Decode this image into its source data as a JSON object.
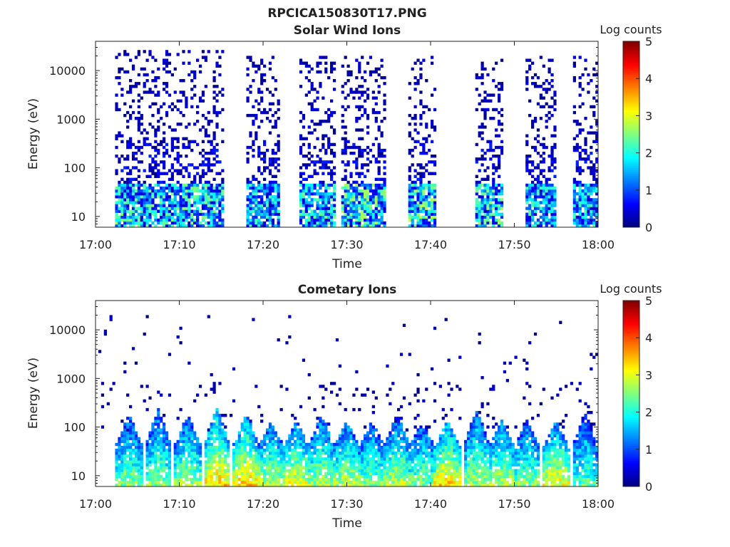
{
  "figure_title": "RPCICA150830T17.PNG",
  "chart_data": [
    {
      "type": "heatmap",
      "title": "Solar Wind Ions",
      "xlabel": "Time",
      "ylabel": "Energy (eV)",
      "xlim": [
        "17:00",
        "18:00"
      ],
      "ylim": [
        6,
        40000
      ],
      "y_scale": "log",
      "x_ticks": [
        "17:00",
        "17:10",
        "17:20",
        "17:30",
        "17:40",
        "17:50",
        "18:00"
      ],
      "y_ticks": [
        "10",
        "100",
        "1000",
        "10000"
      ],
      "colorbar": {
        "label": "Log counts",
        "min": 0,
        "max": 5,
        "ticks": [
          "0",
          "1",
          "2",
          "3",
          "4",
          "5"
        ],
        "colormap": "jet"
      },
      "bursts": [
        {
          "start_min": 2.5,
          "end_min": 15.5,
          "peak_log_counts": 2.3,
          "low_energy_ev": 45,
          "sparse_max_ev": 25000
        },
        {
          "start_min": 18.0,
          "end_min": 22.0,
          "peak_log_counts": 2.0,
          "low_energy_ev": 45,
          "sparse_max_ev": 20000
        },
        {
          "start_min": 24.5,
          "end_min": 28.5,
          "peak_log_counts": 2.2,
          "low_energy_ev": 45,
          "sparse_max_ev": 20000
        },
        {
          "start_min": 29.5,
          "end_min": 34.5,
          "peak_log_counts": 2.5,
          "low_energy_ev": 45,
          "sparse_max_ev": 20000
        },
        {
          "start_min": 37.5,
          "end_min": 40.5,
          "peak_log_counts": 2.6,
          "low_energy_ev": 45,
          "sparse_max_ev": 20000
        },
        {
          "start_min": 45.5,
          "end_min": 48.5,
          "peak_log_counts": 2.4,
          "low_energy_ev": 45,
          "sparse_max_ev": 18000
        },
        {
          "start_min": 51.5,
          "end_min": 55.0,
          "peak_log_counts": 2.0,
          "low_energy_ev": 45,
          "sparse_max_ev": 20000
        },
        {
          "start_min": 57.0,
          "end_min": 60.0,
          "peak_log_counts": 2.0,
          "low_energy_ev": 45,
          "sparse_max_ev": 20000
        }
      ]
    },
    {
      "type": "heatmap",
      "title": "Cometary Ions",
      "xlabel": "Time",
      "ylabel": "Energy (eV)",
      "xlim": [
        "17:00",
        "18:00"
      ],
      "ylim": [
        6,
        40000
      ],
      "y_scale": "log",
      "x_ticks": [
        "17:00",
        "17:10",
        "17:20",
        "17:30",
        "17:40",
        "17:50",
        "18:00"
      ],
      "y_ticks": [
        "10",
        "100",
        "1000",
        "10000"
      ],
      "colorbar": {
        "label": "Log counts",
        "min": 0,
        "max": 5,
        "ticks": [
          "0",
          "1",
          "2",
          "3",
          "4",
          "5"
        ],
        "colormap": "jet"
      },
      "pulses": [
        {
          "center_min": 4.0,
          "peak_log_counts": 3.0,
          "top_energy_ev": 200
        },
        {
          "center_min": 7.5,
          "peak_log_counts": 3.0,
          "top_energy_ev": 250
        },
        {
          "center_min": 11.0,
          "peak_log_counts": 3.2,
          "top_energy_ev": 200
        },
        {
          "center_min": 14.5,
          "peak_log_counts": 3.8,
          "top_energy_ev": 300
        },
        {
          "center_min": 18.0,
          "peak_log_counts": 3.8,
          "top_energy_ev": 200
        },
        {
          "center_min": 21.0,
          "peak_log_counts": 3.3,
          "top_energy_ev": 150
        },
        {
          "center_min": 24.0,
          "peak_log_counts": 3.5,
          "top_energy_ev": 150
        },
        {
          "center_min": 27.0,
          "peak_log_counts": 3.2,
          "top_energy_ev": 200
        },
        {
          "center_min": 30.0,
          "peak_log_counts": 3.3,
          "top_energy_ev": 150
        },
        {
          "center_min": 33.0,
          "peak_log_counts": 3.0,
          "top_energy_ev": 150
        },
        {
          "center_min": 36.0,
          "peak_log_counts": 3.3,
          "top_energy_ev": 200
        },
        {
          "center_min": 39.0,
          "peak_log_counts": 3.0,
          "top_energy_ev": 150
        },
        {
          "center_min": 42.0,
          "peak_log_counts": 3.8,
          "top_energy_ev": 150
        },
        {
          "center_min": 45.5,
          "peak_log_counts": 3.2,
          "top_energy_ev": 250
        },
        {
          "center_min": 48.5,
          "peak_log_counts": 3.3,
          "top_energy_ev": 150
        },
        {
          "center_min": 51.5,
          "peak_log_counts": 3.0,
          "top_energy_ev": 150
        },
        {
          "center_min": 55.0,
          "peak_log_counts": 3.6,
          "top_energy_ev": 150
        },
        {
          "center_min": 58.5,
          "peak_log_counts": 2.8,
          "top_energy_ev": 200
        }
      ]
    }
  ]
}
